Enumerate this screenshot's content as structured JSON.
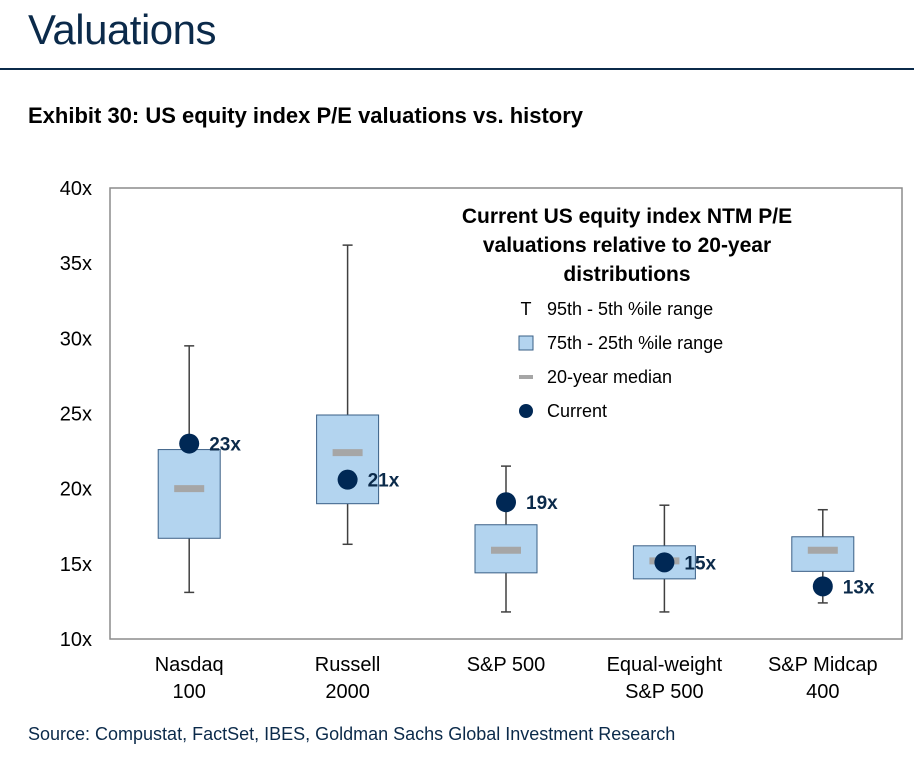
{
  "header": {
    "title": "Valuations",
    "exhibit": "Exhibit 30: US equity index P/E valuations vs. history",
    "source": "Source: Compustat, FactSet, IBES, Goldman Sachs Global Investment Research"
  },
  "colors": {
    "box_fill": "#b3d4ef",
    "box_stroke": "#3a5f86",
    "median": "#a6a6a6",
    "current": "#002855",
    "whisker": "#404040",
    "title_navy": "#0b2a4a"
  },
  "chart_data": {
    "type": "box",
    "title": "Current US equity index NTM P/E valuations relative to 20-year distributions",
    "title_lines": [
      "Current US equity index NTM P/E",
      "valuations relative to 20-year",
      "distributions"
    ],
    "y_ticks": [
      "10x",
      "15x",
      "20x",
      "25x",
      "30x",
      "35x",
      "40x"
    ],
    "ylim": [
      10,
      40
    ],
    "grid": false,
    "legend_position": "top-right",
    "legend": [
      {
        "symbol": "T",
        "label": "95th - 5th %ile range"
      },
      {
        "symbol": "box",
        "label": "75th - 25th %ile range"
      },
      {
        "symbol": "dash",
        "label": "20-year median"
      },
      {
        "symbol": "dot",
        "label": "Current"
      }
    ],
    "categories": [
      {
        "lines": [
          "Nasdaq",
          "100"
        ],
        "p5": 13.1,
        "p25": 16.7,
        "median": 20.0,
        "p75": 22.6,
        "p95": 29.5,
        "current": 23.0,
        "label": "23x"
      },
      {
        "lines": [
          "Russell",
          "2000"
        ],
        "p5": 16.3,
        "p25": 19.0,
        "median": 22.4,
        "p75": 24.9,
        "p95": 36.2,
        "current": 20.6,
        "label": "21x"
      },
      {
        "lines": [
          "S&P 500"
        ],
        "p5": 11.8,
        "p25": 14.4,
        "median": 15.9,
        "p75": 17.6,
        "p95": 21.5,
        "current": 19.1,
        "label": "19x"
      },
      {
        "lines": [
          "Equal-weight",
          "S&P 500"
        ],
        "p5": 11.8,
        "p25": 14.0,
        "median": 15.2,
        "p75": 16.2,
        "p95": 18.9,
        "current": 15.1,
        "label": "15x"
      },
      {
        "lines": [
          "S&P Midcap",
          "400"
        ],
        "p5": 12.4,
        "p25": 14.5,
        "median": 15.9,
        "p75": 16.8,
        "p95": 18.6,
        "current": 13.5,
        "label": "13x"
      }
    ]
  }
}
